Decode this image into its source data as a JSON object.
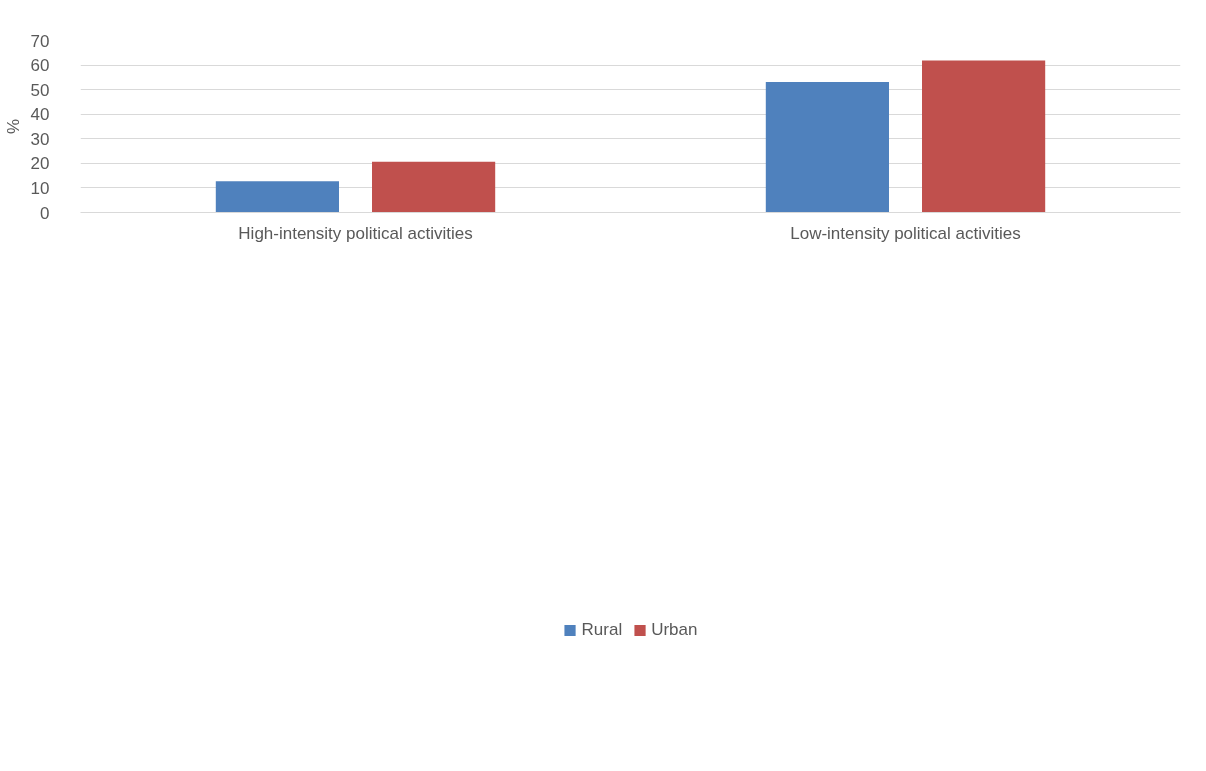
{
  "chart_data": {
    "type": "bar",
    "ylabel": "%",
    "categories": [
      "High-intensity political activities",
      "Low-intensity political activities"
    ],
    "series": [
      {
        "name": "Rural",
        "color": "#4f81bd",
        "values": [
          12.7,
          53.1
        ]
      },
      {
        "name": "Urban",
        "color": "#c0504d",
        "values": [
          20.7,
          61.9
        ]
      }
    ],
    "ylim": [
      0,
      70
    ],
    "yticks": [
      0,
      10,
      20,
      30,
      40,
      50,
      60,
      70
    ],
    "grid": "y",
    "legend": "bottom"
  }
}
